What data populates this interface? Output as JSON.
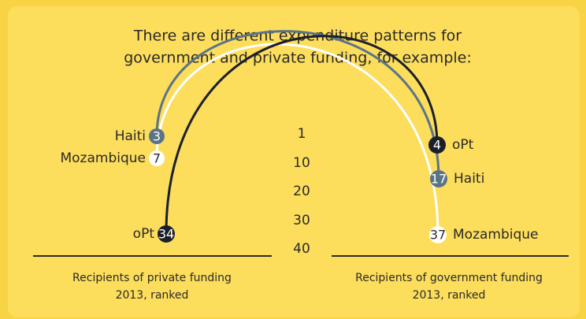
{
  "title_lines": [
    "There are different expenditure patterns for",
    "government and private funding, for example:"
  ],
  "scale": [
    "1",
    "10",
    "20",
    "30",
    "40"
  ],
  "left": {
    "caption_lines": [
      "Recipients of private funding",
      "2013, ranked"
    ],
    "items": [
      {
        "name": "Haiti",
        "rank": 3
      },
      {
        "name": "Mozambique",
        "rank": 7
      },
      {
        "name": "oPt",
        "rank": 34
      }
    ]
  },
  "right": {
    "caption_lines": [
      "Recipients of government funding",
      "2013, ranked"
    ],
    "items": [
      {
        "name": "oPt",
        "rank": 4
      },
      {
        "name": "Haiti",
        "rank": 17
      },
      {
        "name": "Mozambique",
        "rank": 37
      }
    ]
  }
}
